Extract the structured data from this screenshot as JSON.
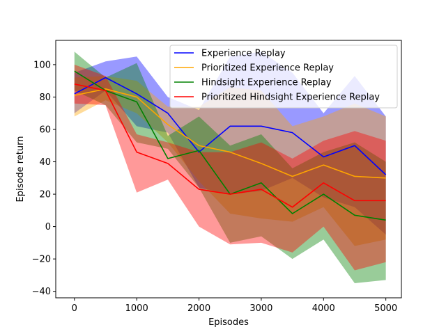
{
  "chart_data": {
    "type": "line",
    "title": "",
    "xlabel": "Episodes",
    "ylabel": "Episode return",
    "xlim": [
      -300,
      5250
    ],
    "ylim": [
      -44,
      115
    ],
    "x_ticks": [
      0,
      1000,
      2000,
      3000,
      4000,
      5000
    ],
    "y_ticks": [
      -40,
      -20,
      0,
      20,
      40,
      60,
      80,
      100
    ],
    "grid": false,
    "legend_position": "top-right",
    "x": [
      0,
      500,
      1000,
      1500,
      2000,
      2500,
      3000,
      3500,
      4000,
      4500,
      5000
    ],
    "series": [
      {
        "name": "Experience Replay",
        "color": "#0000ff",
        "mean": [
          82,
          92,
          82,
          70,
          46,
          62,
          62,
          58,
          43,
          50,
          32
        ],
        "upper": [
          95,
          102,
          105,
          80,
          72,
          105,
          108,
          95,
          70,
          93,
          68
        ],
        "lower": [
          70,
          84,
          62,
          58,
          24,
          20,
          22,
          30,
          18,
          12,
          -5
        ]
      },
      {
        "name": "Prioritized Experience Replay",
        "color": "#ffa500",
        "mean": [
          81,
          85,
          80,
          63,
          50,
          46,
          39,
          31,
          38,
          31,
          30
        ],
        "upper": [
          92,
          93,
          90,
          74,
          74,
          86,
          84,
          62,
          68,
          76,
          68
        ],
        "lower": [
          68,
          78,
          70,
          52,
          28,
          8,
          5,
          3,
          12,
          -12,
          -8
        ]
      },
      {
        "name": "Hindsight Experience Replay",
        "color": "#008000",
        "mean": [
          96,
          84,
          77,
          42,
          47,
          20,
          27,
          8,
          20,
          7,
          4
        ],
        "upper": [
          108,
          92,
          101,
          56,
          68,
          50,
          57,
          36,
          46,
          52,
          40
        ],
        "lower": [
          84,
          75,
          52,
          48,
          24,
          -10,
          -6,
          -20,
          -8,
          -35,
          -33
        ]
      },
      {
        "name": "Prioritized Hindsight Experience Replay",
        "color": "#ff0000",
        "mean": [
          88,
          84,
          46,
          39,
          23,
          20,
          23,
          12,
          27,
          16,
          16
        ],
        "upper": [
          100,
          93,
          57,
          52,
          46,
          46,
          52,
          42,
          53,
          59,
          53
        ],
        "lower": [
          76,
          75,
          21,
          29,
          0,
          -11,
          -10,
          -16,
          0,
          -27,
          -22
        ]
      }
    ]
  }
}
